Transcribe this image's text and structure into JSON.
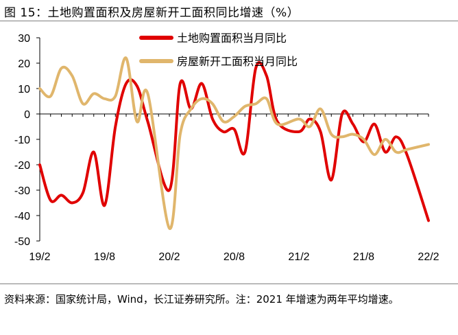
{
  "figure": {
    "title": "图 15：土地购置面积及房屋新开工面积同比增速（%）",
    "note": "资料来源：国家统计局，Wind，长江证券研究所。注：2021 年增速为两年平均增速。"
  },
  "chart_data": {
    "type": "line",
    "title": "图 15：土地购置面积及房屋新开工面积同比增速（%）",
    "xlabel": "",
    "ylabel": "%",
    "ylim": [
      -50,
      30
    ],
    "yticks": [
      30,
      20,
      10,
      0,
      -10,
      -20,
      -30,
      -40,
      -50
    ],
    "xtick_labels": [
      "19/2",
      "19/8",
      "20/2",
      "20/8",
      "21/2",
      "21/8",
      "22/2"
    ],
    "x": [
      "19/2",
      "19/3",
      "19/4",
      "19/5",
      "19/6",
      "19/7",
      "19/8",
      "19/9",
      "19/10",
      "19/11",
      "19/12",
      "20/1",
      "20/2",
      "20/3",
      "20/4",
      "20/5",
      "20/6",
      "20/7",
      "20/8",
      "20/9",
      "20/10",
      "20/11",
      "20/12",
      "21/1",
      "21/2",
      "21/3",
      "21/4",
      "21/5",
      "21/6",
      "21/7",
      "21/8",
      "21/9",
      "21/10",
      "21/11",
      "21/12",
      "22/1",
      "22/2"
    ],
    "legend_position": "top-right",
    "series": [
      {
        "name": "土地购置面积当月同比",
        "color": "#e00000",
        "values": [
          -20,
          -34,
          -32,
          -35,
          -31,
          -15,
          -36,
          -5,
          12,
          11,
          -3,
          null,
          -30,
          12,
          2,
          12,
          -2,
          -7,
          -6,
          -15,
          18,
          15,
          -3,
          null,
          -7,
          -2,
          -7,
          -26,
          0,
          -4,
          -11,
          -4,
          -15,
          -9,
          -16,
          null,
          -42
        ]
      },
      {
        "name": "房屋新开工面积当月同比",
        "color": "#e0b66c",
        "values": [
          10,
          7,
          18,
          15,
          4,
          8,
          6,
          7,
          22,
          -3,
          8,
          null,
          -45,
          -8,
          2,
          6,
          4,
          -3,
          -1,
          3,
          4,
          6,
          -4,
          null,
          -2,
          -5,
          2,
          -8,
          -9,
          -8,
          -10,
          -16,
          -10,
          -15,
          -14,
          null,
          -12
        ]
      }
    ]
  }
}
